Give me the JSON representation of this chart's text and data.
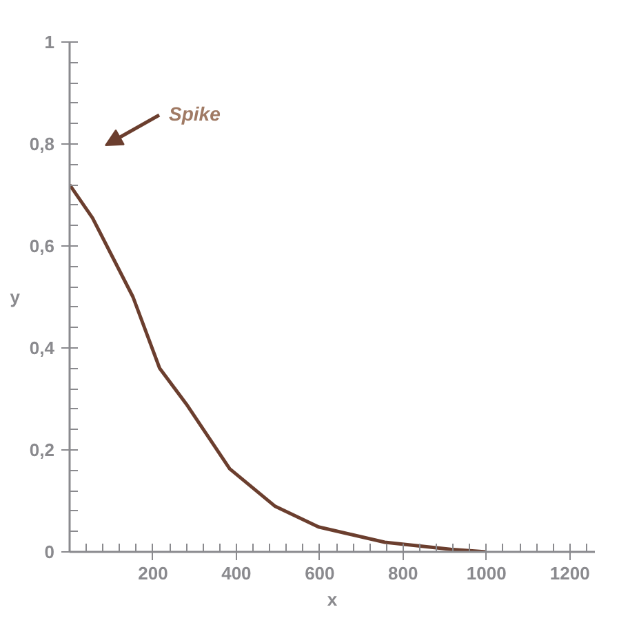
{
  "chart_data": {
    "type": "line",
    "xlabel": "x",
    "ylabel": "y",
    "x": [
      0,
      55,
      152,
      216,
      280,
      384,
      492,
      597,
      756,
      914,
      1000
    ],
    "series": [
      {
        "color": "#6b3e2e",
        "values": [
          0.72,
          0.655,
          0.5,
          0.36,
          0.29,
          0.163,
          0.09,
          0.049,
          0.019,
          0.005,
          0
        ]
      }
    ],
    "xlim": [
      0,
      1260
    ],
    "ylim": [
      0,
      1
    ],
    "xticks": [
      200,
      400,
      600,
      800,
      1000,
      1200
    ],
    "yticks": [
      0,
      {
        "value": 0.2,
        "label": "0,2"
      },
      {
        "value": 0.4,
        "label": "0,4"
      },
      {
        "value": 0.6,
        "label": "0,6"
      },
      {
        "value": 0.8,
        "label": "0,8"
      },
      1
    ],
    "annotations": [
      "Spike"
    ],
    "grid": false,
    "marker": "none",
    "line_style": "solid"
  }
}
